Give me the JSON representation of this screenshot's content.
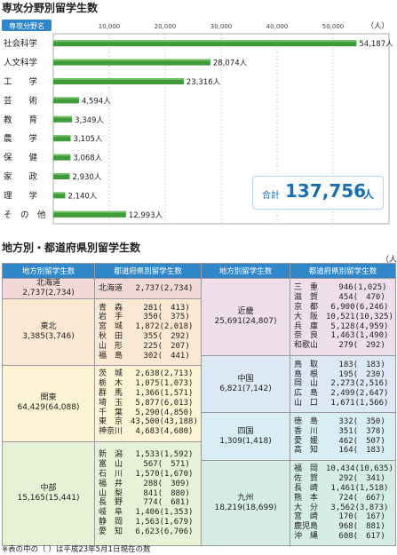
{
  "section1_title": "専攻分野別留学生数",
  "chart_data": {
    "type": "bar",
    "orientation": "horizontal",
    "category_header": "専攻分野名",
    "unit": "（人）",
    "categories": [
      "社会科学",
      "人文科学",
      "工　　学",
      "芸　　術",
      "教　　育",
      "農　　学",
      "保　　健",
      "家　　政",
      "理　　学",
      "そ　の　他"
    ],
    "values": [
      54187,
      28074,
      23316,
      4594,
      3349,
      3105,
      3068,
      2930,
      2140,
      12993
    ],
    "data_labels": [
      "54,187人",
      "28,074人",
      "23,316人",
      "4,594人",
      "3,349人",
      "3,105人",
      "3,068人",
      "2,930人",
      "2,140人",
      "12,993人"
    ],
    "xticks": [
      "10,000",
      "20,000",
      "30,000",
      "40,000",
      "50,000"
    ],
    "xtick_values": [
      10000,
      20000,
      30000,
      40000,
      50000
    ],
    "xlim": [
      0,
      60000
    ],
    "grid": true,
    "bar_color": "#3f9a3a"
  },
  "total": {
    "label": "合計",
    "value": "137,756",
    "unit": "人"
  },
  "section2_title": "地方別・都道府県別留学生数",
  "table_unit": "（人）",
  "headers": {
    "region": "地方別留学生数",
    "pref": "都道府県別留学生数"
  },
  "left_groups": [
    {
      "name": "北海道",
      "count": "2,737(2,734)",
      "color": "#f2d9d8",
      "prefs": [
        "北海道　 2,737(2,734)"
      ]
    },
    {
      "name": "東北",
      "count": "3,385(3,746)",
      "color": "#fbe8d2",
      "prefs": [
        "青　森　　 281(　413)",
        "岩　手　　 350(　375)",
        "宮　城　 1,872(2,018)",
        "秋　田　　 355(　292)",
        "山　形　　 225(　207)",
        "福　島　　 302(　441)"
      ]
    },
    {
      "name": "関東",
      "count": "64,429(64,088)",
      "color": "#fbf3d4",
      "prefs": [
        "茨　城　 2,638(2,713)",
        "栃　木　 1,075(1,073)",
        "群　馬　 1,366(1,571)",
        "埼　玉　 5,877(6,013)",
        "千　葉　 5,290(4,850)",
        "東　京　43,500(43,188)",
        "神奈川　 4,683(4,680)"
      ]
    },
    {
      "name": "中部",
      "count": "15,165(15,441)",
      "color": "#e6f1d6",
      "prefs": [
        "新　潟　 1,533(1,592)",
        "富　山　　 567(　571)",
        "石　川　 1,570(1,670)",
        "福　井　　 288(　309)",
        "山　梨　　 841(　880)",
        "長　野　　 774(　681)",
        "岐　阜　 1,406(1,353)",
        "静　岡　 1,563(1,679)",
        "愛　知　 6,623(6,706)"
      ]
    }
  ],
  "right_groups": [
    {
      "name": "近畿",
      "count": "25,691(24,807)",
      "color": "#efdfea",
      "prefs": [
        "三　重　　 946(1,025)",
        "滋　賀　　 454(　470)",
        "京　都　 6,900(6,246)",
        "大　阪　10,521(10,325)",
        "兵　庫　 5,128(4,959)",
        "奈　良　 1,463(1,490)",
        "和歌山　　 279(　292)"
      ]
    },
    {
      "name": "中国",
      "count": "6,821(7,142)",
      "color": "#dce8f4",
      "prefs": [
        "鳥　取　　 183(　183)",
        "島　根　　 195(　230)",
        "岡　山　 2,273(2,516)",
        "広　島　 2,499(2,647)",
        "山　口　 1,671(1,566)"
      ]
    },
    {
      "name": "四国",
      "count": "1,309(1,418)",
      "color": "#d9eef4",
      "prefs": [
        "徳　島　　 332(　350)",
        "香　川　　 351(　378)",
        "愛　媛　　 462(　507)",
        "高　知　　 164(　183)"
      ]
    },
    {
      "name": "九州",
      "count": "18,219(18,699)",
      "color": "#d6ede3",
      "prefs": [
        "福　岡　10,434(10,635)",
        "佐　賀　　 292(　341)",
        "長　崎　 1,461(1,518)",
        "熊　本　　 724(　667)",
        "大　分　 3,562(3,873)",
        "宮　崎　　 170(　167)",
        "鹿児島　　 968(　881)",
        "沖　縄　　 608(　617)"
      ]
    }
  ],
  "footnote": "※表の中の（ ）は平成23年5月1日現在の数"
}
